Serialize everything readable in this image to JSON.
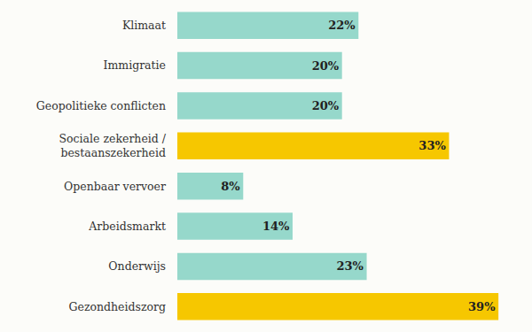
{
  "chart_data": {
    "type": "bar",
    "orientation": "horizontal",
    "categories": [
      "Klimaat",
      "Immigratie",
      "Geopolitieke conflicten",
      "Sociale zekerheid / bestaanszekerheid",
      "Openbaar vervoer",
      "Arbeidsmarkt",
      "Onderwijs",
      "Gezondheidszorg"
    ],
    "values": [
      22,
      20,
      20,
      33,
      8,
      14,
      23,
      39
    ],
    "value_labels": [
      "22%",
      "20%",
      "20%",
      "33%",
      "8%",
      "14%",
      "23%",
      "39%"
    ],
    "colors": [
      "#96d8cb",
      "#96d8cb",
      "#96d8cb",
      "#f6c700",
      "#96d8cb",
      "#96d8cb",
      "#96d8cb",
      "#f6c700"
    ],
    "xlim": [
      0,
      42
    ],
    "data_labels": true,
    "tick_labels": "y",
    "grid": false
  }
}
